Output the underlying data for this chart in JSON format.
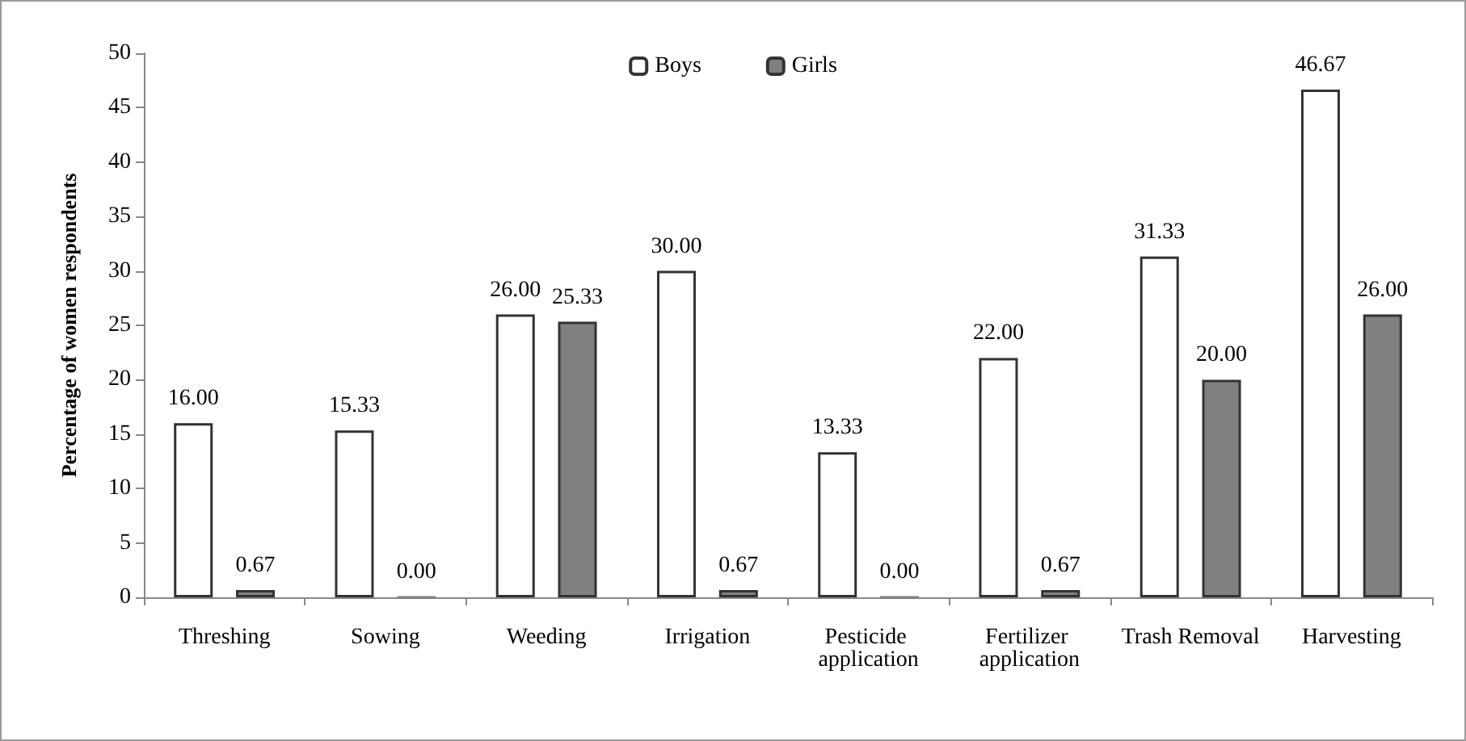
{
  "chart_data": {
    "type": "bar",
    "ylabel": "Percentage of women respondents",
    "categories": [
      "Threshing",
      "Sowing",
      "Weeding",
      "Irrigation",
      "Pesticide application",
      "Fertilizer application",
      "Trash Removal",
      "Harvesting"
    ],
    "series": [
      {
        "name": "Boys",
        "color": "#ffffff",
        "values": [
          16.0,
          15.33,
          26.0,
          30.0,
          13.33,
          22.0,
          31.33,
          46.67
        ],
        "value_labels": [
          "16.00",
          "15.33",
          "26.00",
          "30.00",
          "13.33",
          "22.00",
          "31.33",
          "46.67"
        ]
      },
      {
        "name": "Girls",
        "color": "#808080",
        "values": [
          0.67,
          0.0,
          25.33,
          0.67,
          0.0,
          0.67,
          20.0,
          26.0
        ],
        "value_labels": [
          "0.67",
          "0.00",
          "25.33",
          "0.67",
          "0.00",
          "0.67",
          "20.00",
          "26.00"
        ]
      }
    ],
    "ylim": [
      0,
      50
    ],
    "yticks": [
      0,
      5,
      10,
      15,
      20,
      25,
      30,
      35,
      40,
      45,
      50
    ],
    "grid": false,
    "legend": "top"
  }
}
